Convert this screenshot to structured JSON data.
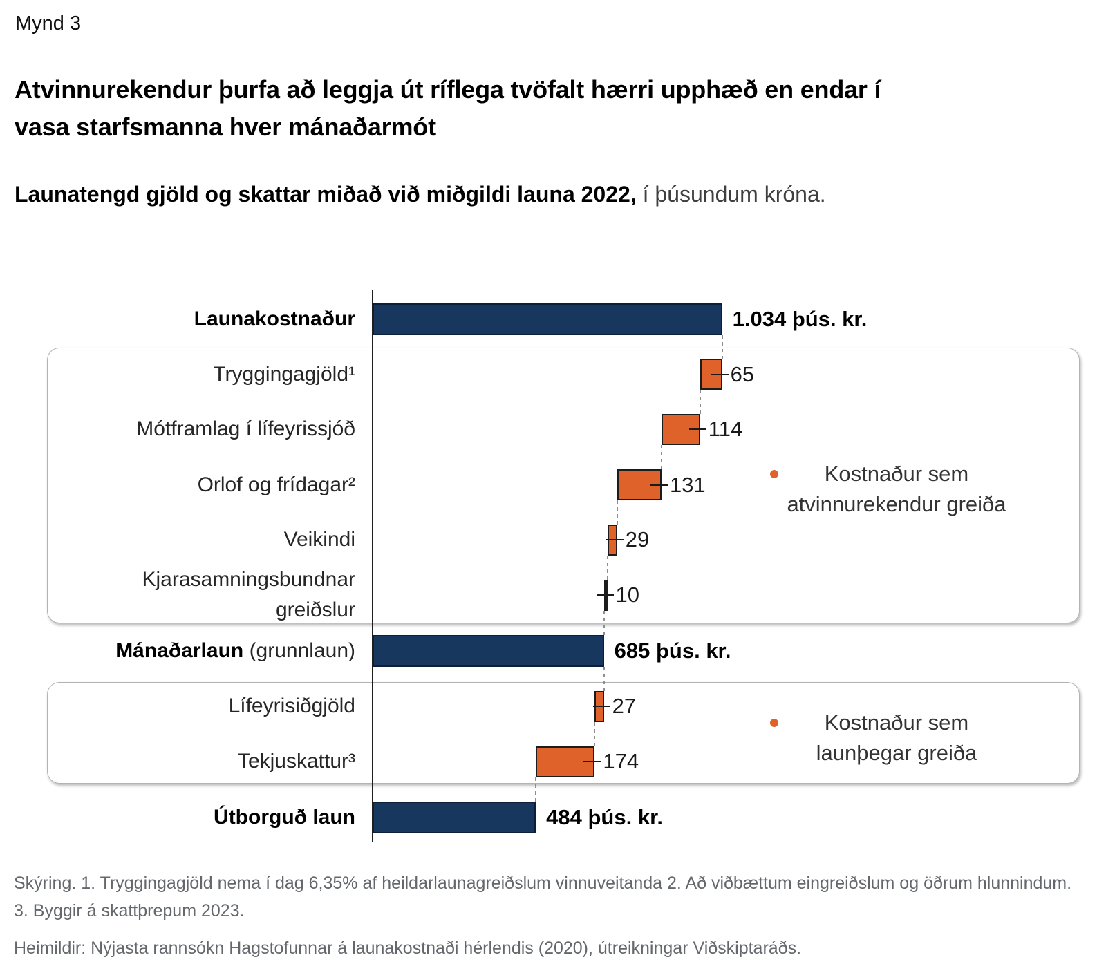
{
  "figure_label": "Mynd 3",
  "title_lines": [
    "Atvinnurekendur þurfa að leggja út ríflega tvöfalt hærri upphæð en endar í",
    "vasa starfsmanna hver mánaðarmót"
  ],
  "subtitle": {
    "bold": "Launatengd gjöld og skattar miðað við miðgildi launa 2022,",
    "regular": " í þúsundum króna."
  },
  "footnotes": {
    "note": "Skýring. 1. Tryggingagjöld nema í dag 6,35% af heildarlaunagreiðslum vinnuveitanda 2. Að viðbættum eingreiðslum og öðrum hlunnindum. 3. Byggir á skattþrepum 2023.",
    "sources": "Heimildir: Nýjasta rannsókn Hagstofunnar á launakostnaði hérlendis (2020), útreikningar Viðskiptaráðs."
  },
  "colors": {
    "total_bar": "#17375E",
    "component_bar": "#E0622B",
    "bar_border_dark": "#1C1C1C",
    "navy_border": "#0C1F3A",
    "connector_dash": "#8E8E8E",
    "group_box_border": "#B3B3B3",
    "footnote_text": "#64686D"
  },
  "chart_data": {
    "type": "bar",
    "subtype": "waterfall-horizontal",
    "unit": "þús. kr.",
    "axis": {
      "min": 0,
      "max": 1034,
      "gridlines": false
    },
    "rows": [
      {
        "id": "launakostnadur",
        "kind": "total",
        "value": 1034,
        "value_label": "1.034 þús. kr.",
        "label_parts": [
          {
            "text": "Launakostnaður",
            "bold": true
          }
        ]
      },
      {
        "id": "tryggingagjold",
        "kind": "delta",
        "value": 65,
        "value_label": "65",
        "box": 0,
        "label_parts": [
          {
            "text": "Tryggingagjöld¹",
            "bold": false
          }
        ]
      },
      {
        "id": "motframlag-i-lifeyrissjod",
        "kind": "delta",
        "value": 114,
        "value_label": "114",
        "box": 0,
        "label_parts": [
          {
            "text": "Mótframlag í lífeyrissjóð",
            "bold": false
          }
        ]
      },
      {
        "id": "orlof-og-fridagar",
        "kind": "delta",
        "value": 131,
        "value_label": "131",
        "box": 0,
        "label_parts": [
          {
            "text": "Orlof og frídagar²",
            "bold": false
          }
        ]
      },
      {
        "id": "veikindi",
        "kind": "delta",
        "value": 29,
        "value_label": "29",
        "box": 0,
        "label_parts": [
          {
            "text": "Veikindi",
            "bold": false
          }
        ]
      },
      {
        "id": "kjarasamningsbundnar-greidslur",
        "kind": "delta",
        "value": 10,
        "value_label": "10",
        "box": 0,
        "label_parts": [
          {
            "text": "Kjarasamningsbundnar",
            "bold": false
          },
          {
            "text": "greiðslur",
            "bold": false,
            "newline": true
          }
        ]
      },
      {
        "id": "manadarlaun",
        "kind": "total",
        "value": 685,
        "value_label": "685 þús. kr.",
        "label_parts": [
          {
            "text": "Mánaðarlaun",
            "bold": true
          },
          {
            "text": " (grunnlaun)",
            "bold": false
          }
        ]
      },
      {
        "id": "lifeyrisidgjold",
        "kind": "delta",
        "value": 27,
        "value_label": "27",
        "box": 1,
        "label_parts": [
          {
            "text": "Lífeyrisiðgjöld",
            "bold": false
          }
        ]
      },
      {
        "id": "tekjuskattur",
        "kind": "delta",
        "value": 174,
        "value_label": "174",
        "box": 1,
        "label_parts": [
          {
            "text": "Tekjuskattur³",
            "bold": false
          }
        ]
      },
      {
        "id": "utborgud-laun",
        "kind": "total",
        "value": 484,
        "value_label": "484 þús. kr.",
        "label_parts": [
          {
            "text": "Útborguð laun",
            "bold": true
          }
        ]
      }
    ],
    "legends": [
      {
        "line1": "Kostnaður sem",
        "line2": "atvinnurekendur greiða"
      },
      {
        "line1": "Kostnaður sem",
        "line2": "launþegar greiða"
      }
    ]
  }
}
